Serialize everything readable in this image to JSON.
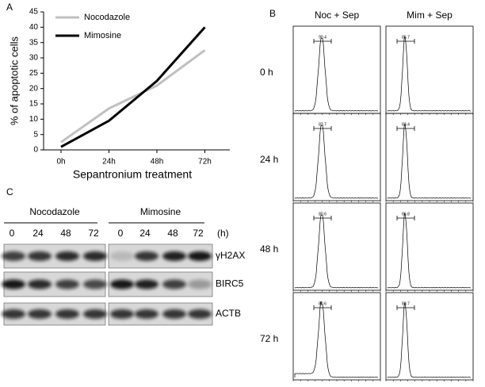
{
  "chart_data": {
    "type": "line",
    "panel": "A",
    "y_label": "% of apoptotic cells",
    "x_label": "Sepantronium treatment",
    "categories": [
      "0h",
      "24h",
      "48h",
      "72h"
    ],
    "series": [
      {
        "name": "Nocodazole",
        "color": "#c0c0c0",
        "values": [
          2.5,
          13.5,
          21,
          32.5
        ]
      },
      {
        "name": "Mimosine",
        "color": "#000000",
        "values": [
          1,
          9.5,
          22.5,
          40
        ]
      }
    ],
    "ylim": [
      0,
      45
    ],
    "yticks": [
      0,
      5,
      10,
      15,
      20,
      25,
      30,
      35,
      40,
      45
    ],
    "legend": "upper left"
  },
  "flow": {
    "panel": "B",
    "columns": [
      "Noc + Sep",
      "Mim + Sep"
    ],
    "rows": [
      "0 h",
      "24 h",
      "48 h",
      "72 h"
    ],
    "gates": [
      [
        "90.4",
        "85.7"
      ],
      [
        "83.7",
        "83.4"
      ],
      [
        "80.6",
        "86.8"
      ],
      [
        "80.6",
        "88.7"
      ]
    ]
  },
  "blot": {
    "panel": "C",
    "groups": [
      {
        "name": "Nocodazole",
        "lanes": [
          "0",
          "24",
          "48",
          "72"
        ]
      },
      {
        "name": "Mimosine",
        "lanes": [
          "0",
          "24",
          "48",
          "72"
        ]
      }
    ],
    "unit": "(h)",
    "proteins": [
      "γH2AX",
      "BIRC5",
      "ACTB"
    ]
  }
}
